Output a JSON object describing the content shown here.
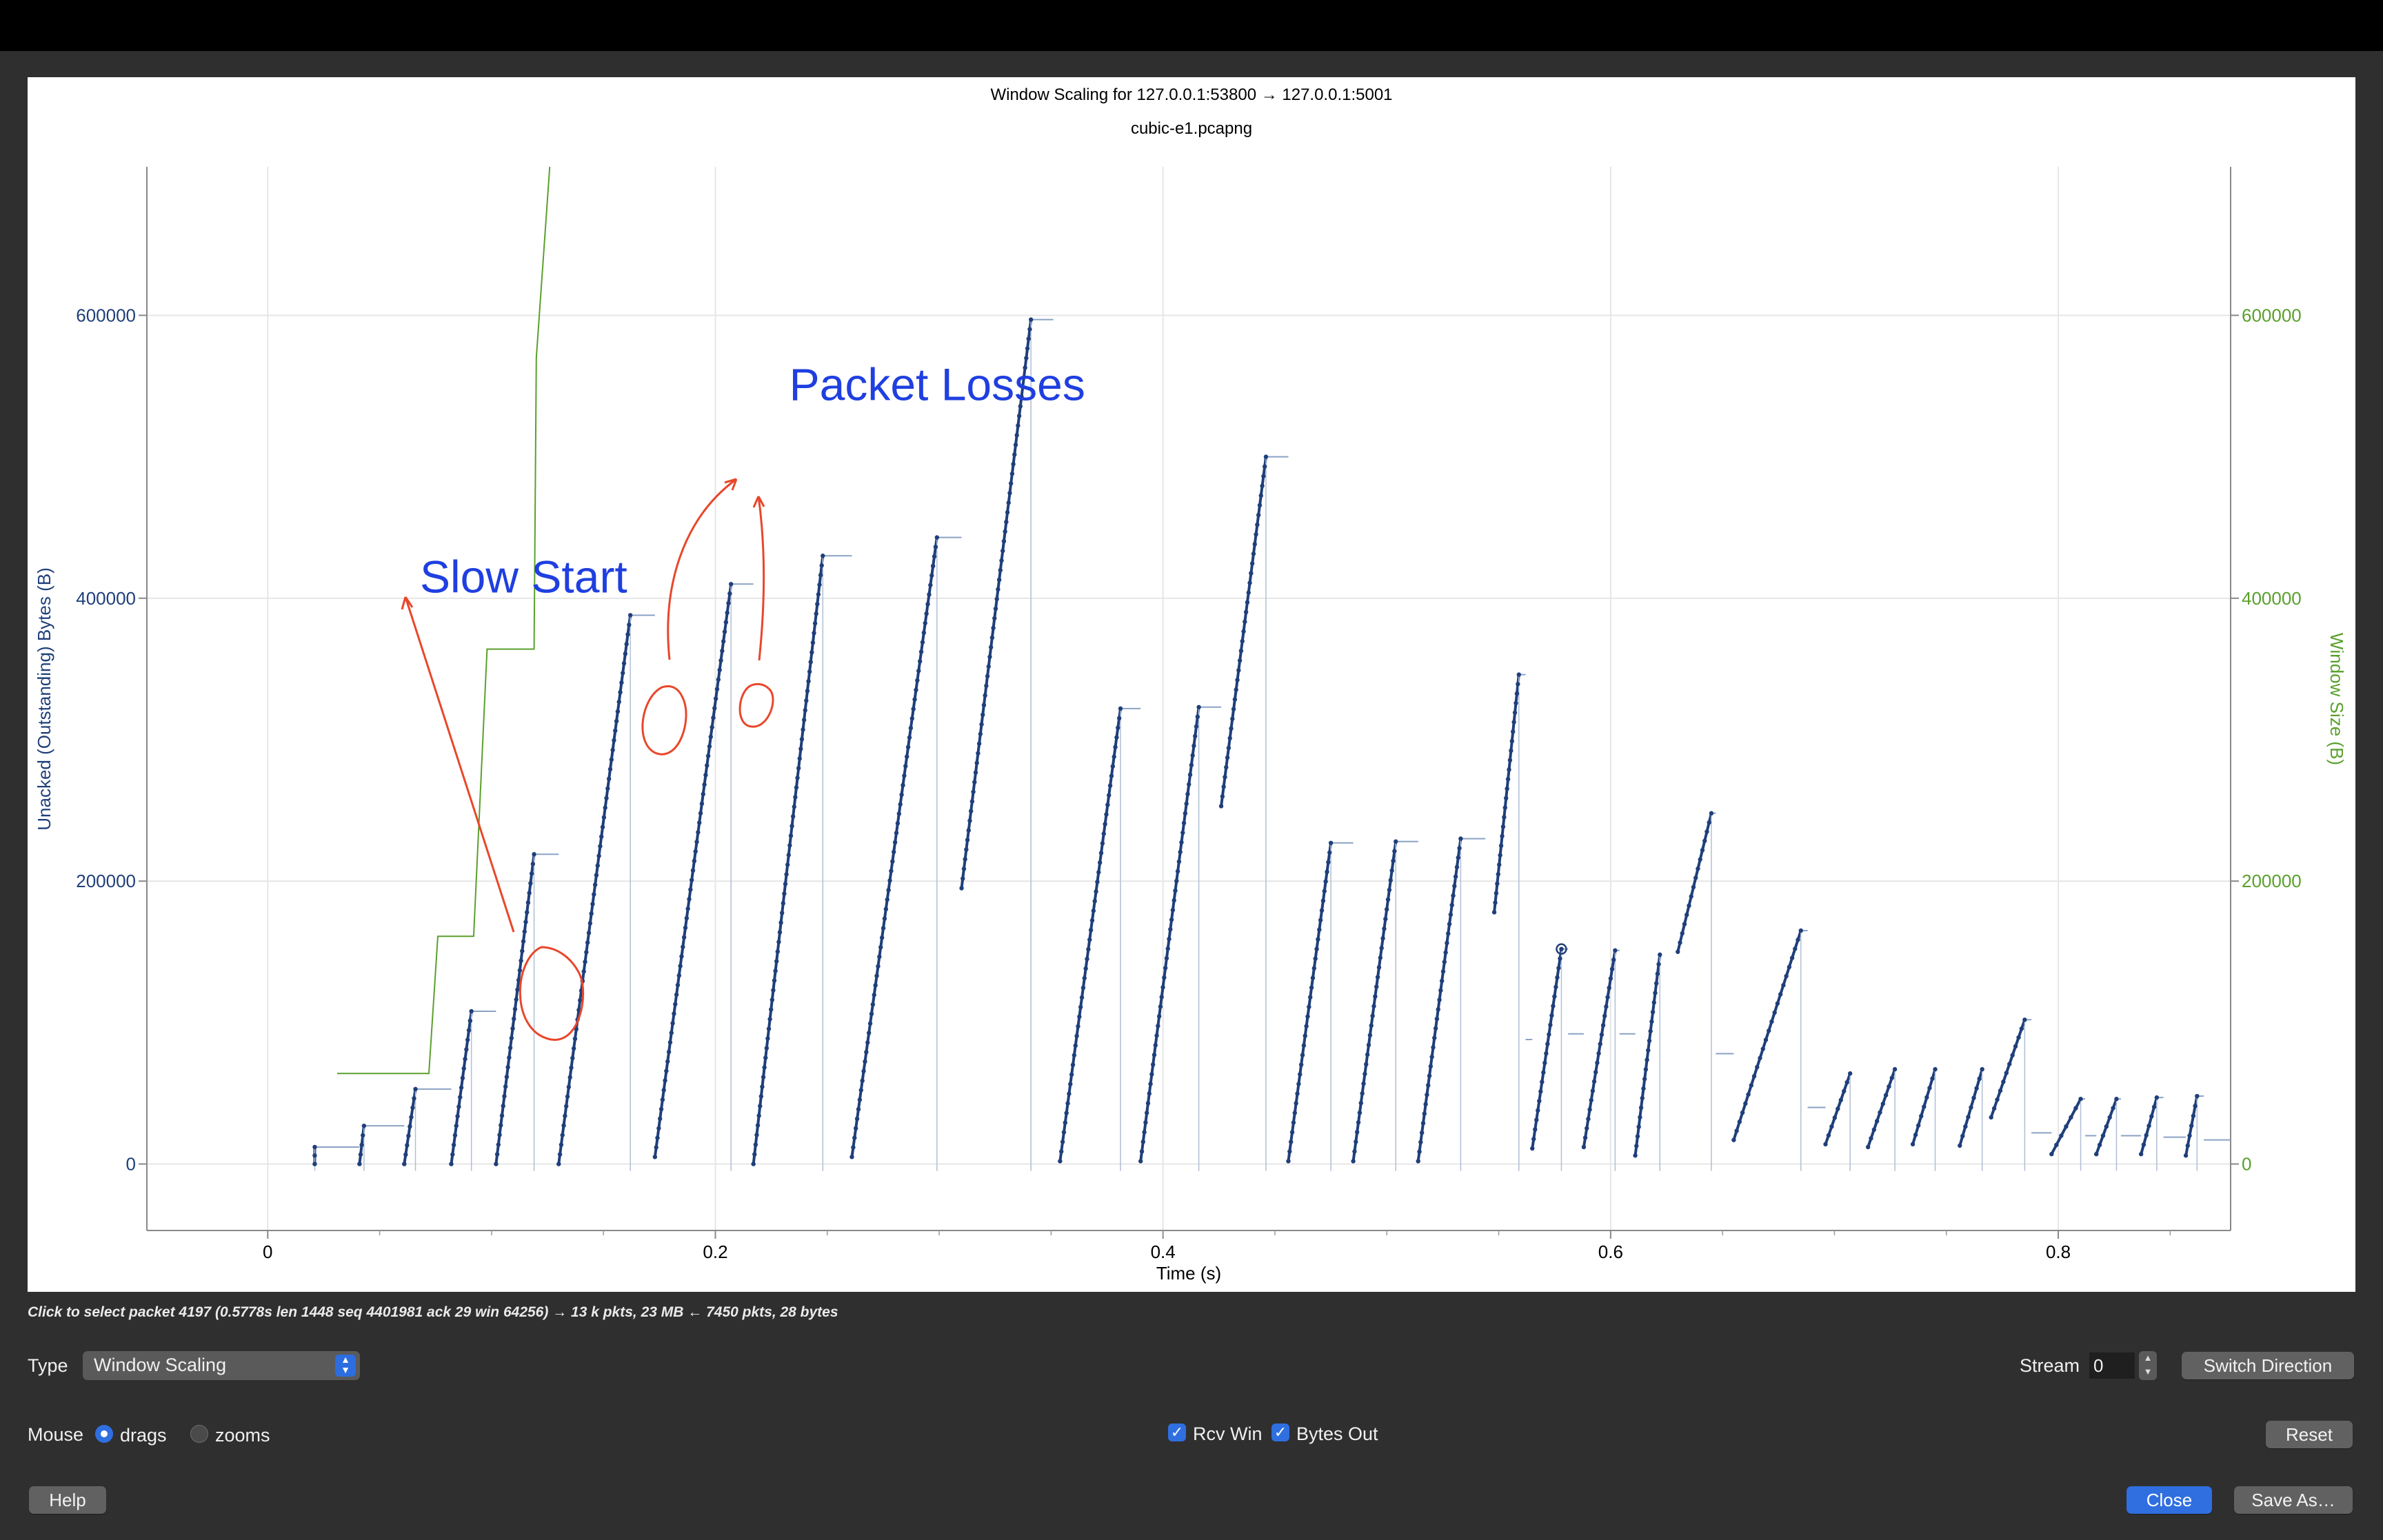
{
  "window": {
    "chart_title": "Window Scaling for 127.0.0.1:53800 → 127.0.0.1:5001",
    "chart_subtitle": "cubic-e1.pcapng",
    "colors": {
      "unacked": "#1f3f7a",
      "window": "#5aa02c",
      "annotation_text": "#1f3fe0",
      "annotation_ink": "#e8472b"
    }
  },
  "chart_data": {
    "type": "scatter",
    "title": "Window Scaling for 127.0.0.1:53800 → 127.0.0.1:5001",
    "subtitle": "cubic-e1.pcapng",
    "xlabel": "Time (s)",
    "ylabel": "Unacked (Outstanding) Bytes (B)",
    "y2label": "Window Size (B)",
    "xlim": [
      -0.054,
      0.877
    ],
    "ylim": [
      -47000,
      705000
    ],
    "x_ticks": [
      "0",
      "0.2",
      "0.4",
      "0.6",
      "0.8"
    ],
    "y_ticks": [
      "0",
      "200000",
      "400000",
      "600000"
    ],
    "y2_ticks": [
      "0",
      "200000",
      "400000",
      "600000"
    ],
    "grid": true,
    "series": [
      {
        "name": "Bytes Out",
        "segments": [
          [
            0.021,
            0,
            0.021,
            12000
          ],
          [
            0.041,
            0,
            0.043,
            27000
          ],
          [
            0.061,
            0,
            0.066,
            53000
          ],
          [
            0.082,
            0,
            0.091,
            108000
          ],
          [
            0.102,
            0,
            0.119,
            219000
          ],
          [
            0.13,
            0,
            0.162,
            388000
          ],
          [
            0.173,
            5000,
            0.207,
            410000
          ],
          [
            0.217,
            0,
            0.248,
            430000
          ],
          [
            0.261,
            5000,
            0.299,
            443000
          ],
          [
            0.31,
            195000,
            0.341,
            597000
          ],
          [
            0.354,
            2000,
            0.381,
            322000
          ],
          [
            0.39,
            2000,
            0.416,
            323000
          ],
          [
            0.426,
            253000,
            0.446,
            500000
          ],
          [
            0.456,
            2000,
            0.475,
            227000
          ],
          [
            0.485,
            2000,
            0.504,
            228000
          ],
          [
            0.514,
            2000,
            0.533,
            230000
          ],
          [
            0.548,
            178000,
            0.559,
            346000
          ],
          [
            0.565,
            11000,
            0.578,
            152000
          ],
          [
            0.588,
            12000,
            0.602,
            151000
          ],
          [
            0.611,
            6000,
            0.622,
            148000
          ],
          [
            0.63,
            150000,
            0.645,
            248000
          ],
          [
            0.655,
            17000,
            0.685,
            165000
          ],
          [
            0.696,
            14000,
            0.707,
            64000
          ],
          [
            0.715,
            12000,
            0.727,
            67000
          ],
          [
            0.735,
            14000,
            0.745,
            67000
          ],
          [
            0.756,
            13000,
            0.766,
            67000
          ],
          [
            0.77,
            33000,
            0.785,
            102000
          ],
          [
            0.797,
            7000,
            0.81,
            46000
          ],
          [
            0.817,
            7000,
            0.826,
            46000
          ],
          [
            0.837,
            7000,
            0.844,
            47000
          ],
          [
            0.857,
            6000,
            0.862,
            48000
          ]
        ],
        "plateaus": [
          [
            0.021,
            12000,
            0.041
          ],
          [
            0.043,
            27000,
            0.061
          ],
          [
            0.066,
            53000,
            0.082
          ],
          [
            0.091,
            108000,
            0.102
          ],
          [
            0.119,
            219000,
            0.13
          ],
          [
            0.162,
            388000,
            0.173
          ],
          [
            0.207,
            410000,
            0.217
          ],
          [
            0.248,
            430000,
            0.261
          ],
          [
            0.299,
            443000,
            0.31
          ],
          [
            0.341,
            597000,
            0.351
          ],
          [
            0.381,
            322000,
            0.39
          ],
          [
            0.416,
            323000,
            0.426
          ],
          [
            0.446,
            500000,
            0.456
          ],
          [
            0.475,
            227000,
            0.485
          ],
          [
            0.504,
            228000,
            0.514
          ],
          [
            0.533,
            230000,
            0.544
          ],
          [
            0.559,
            346000,
            0.562
          ],
          [
            0.562,
            88000,
            0.565
          ],
          [
            0.578,
            152000,
            0.581
          ],
          [
            0.581,
            92000,
            0.588
          ],
          [
            0.602,
            151000,
            0.604
          ],
          [
            0.604,
            92000,
            0.611
          ],
          [
            0.645,
            248000,
            0.647
          ],
          [
            0.647,
            78000,
            0.655
          ],
          [
            0.685,
            165000,
            0.688
          ],
          [
            0.688,
            40000,
            0.696
          ],
          [
            0.785,
            102000,
            0.788
          ],
          [
            0.788,
            22000,
            0.797
          ],
          [
            0.81,
            46000,
            0.812
          ],
          [
            0.812,
            20000,
            0.817
          ],
          [
            0.826,
            46000,
            0.828
          ],
          [
            0.828,
            20000,
            0.837
          ],
          [
            0.844,
            47000,
            0.847
          ],
          [
            0.847,
            19000,
            0.857
          ],
          [
            0.862,
            48000,
            0.865
          ],
          [
            0.865,
            17000,
            0.877
          ]
        ]
      },
      {
        "name": "Rcv Win",
        "points": [
          [
            0.031,
            64000
          ],
          [
            0.072,
            64000
          ],
          [
            0.076,
            161000
          ],
          [
            0.092,
            161000
          ],
          [
            0.098,
            364000
          ],
          [
            0.119,
            364000
          ],
          [
            0.12,
            570000
          ],
          [
            0.126,
            705000
          ]
        ]
      }
    ],
    "annotations": [
      {
        "text": "Slow Start",
        "x": 0.068,
        "y": 404000
      },
      {
        "text": "Packet Losses",
        "x": 0.233,
        "y": 540000
      }
    ],
    "selected_point": [
      0.578,
      152000
    ]
  },
  "status": "Click to select packet 4197 (0.5778s len 1448 seq 4401981 ack 29 win 64256) → 13 k pkts, 23 MB ← 7450 pkts, 28 bytes",
  "controls": {
    "type_label": "Type",
    "type_value": "Window Scaling",
    "stream_label": "Stream",
    "stream_value": "0",
    "switch_direction": "Switch Direction",
    "mouse_label": "Mouse",
    "mouse_drags": "drags",
    "mouse_zooms": "zooms",
    "mouse_mode": "drags",
    "rcv_win_label": "Rcv Win",
    "rcv_win_checked": true,
    "bytes_out_label": "Bytes Out",
    "bytes_out_checked": true,
    "reset": "Reset",
    "help": "Help",
    "close": "Close",
    "save_as": "Save As…"
  }
}
